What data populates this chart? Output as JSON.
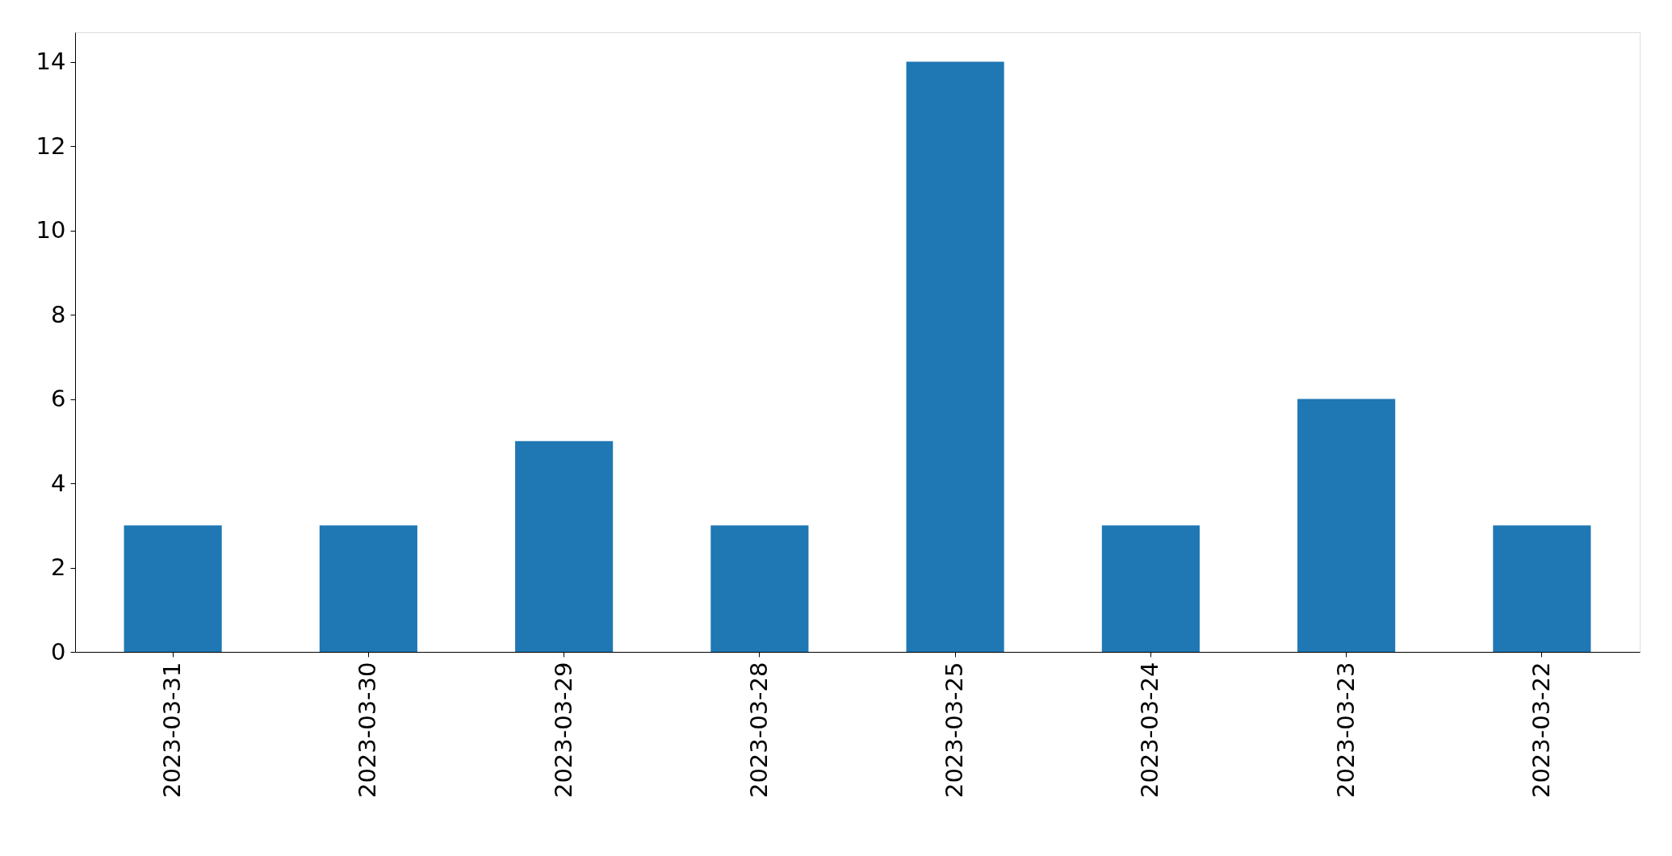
{
  "chart_data": {
    "type": "bar",
    "categories": [
      "2023-03-31",
      "2023-03-30",
      "2023-03-29",
      "2023-03-28",
      "2023-03-25",
      "2023-03-24",
      "2023-03-23",
      "2023-03-22"
    ],
    "values": [
      3,
      3,
      5,
      3,
      14,
      3,
      6,
      3
    ],
    "color": "#1f77b4",
    "ylim": [
      0,
      14.7
    ],
    "yticks": [
      0,
      2,
      4,
      6,
      8,
      10,
      12,
      14
    ]
  }
}
